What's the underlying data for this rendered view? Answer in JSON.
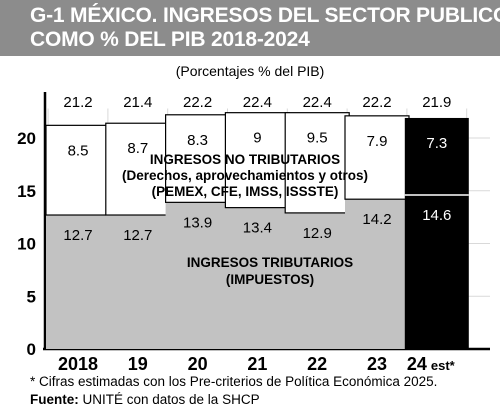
{
  "header": {
    "title_line_1": "G-1 MÉXICO. INGRESOS DEL SECTOR PUBLICO",
    "title_line_2": "COMO % DEL PIB 2018-2024"
  },
  "footer": {
    "note": "* Cifras estimadas con los Pre-criterios de Política Económica 2025.",
    "source_label": "Fuente:",
    "source_text": " UNITÉ con datos de la SHCP"
  },
  "colors": {
    "title_background": "#8c8c8c",
    "tributarios": "#c2c2c2",
    "no_tributarios": "#ffffff",
    "estimate": "#000000",
    "grid": "#d9d9d9"
  },
  "chart_data": {
    "type": "bar",
    "stacked": true,
    "title": "",
    "subtitle": "(Porcentajes % del PIB)",
    "xlabel": "",
    "ylabel": "",
    "ylim": [
      0,
      22
    ],
    "yticks": [
      0,
      5,
      10,
      15,
      20
    ],
    "grid": true,
    "categories": [
      "2018",
      "19",
      "20",
      "21",
      "22",
      "23",
      "24 est*"
    ],
    "totals": [
      21.2,
      21.4,
      22.2,
      22.4,
      22.4,
      22.2,
      21.9
    ],
    "series": [
      {
        "name": "INGRESOS TRIBUTARIOS",
        "sublabel": "(IMPUESTOS)",
        "values": [
          12.7,
          12.7,
          13.9,
          13.4,
          12.9,
          14.2,
          14.6
        ]
      },
      {
        "name": "INGRESOS NO TRIBUTARIOS",
        "sublabel_1": "(Derechos, aprovechamientos y otros)",
        "sublabel_2": "(PEMEX, CFE, IMSS, ISSSTE)",
        "values": [
          8.5,
          8.7,
          8.3,
          9,
          9.5,
          7.9,
          7.3
        ]
      }
    ],
    "estimate_index": 6
  }
}
